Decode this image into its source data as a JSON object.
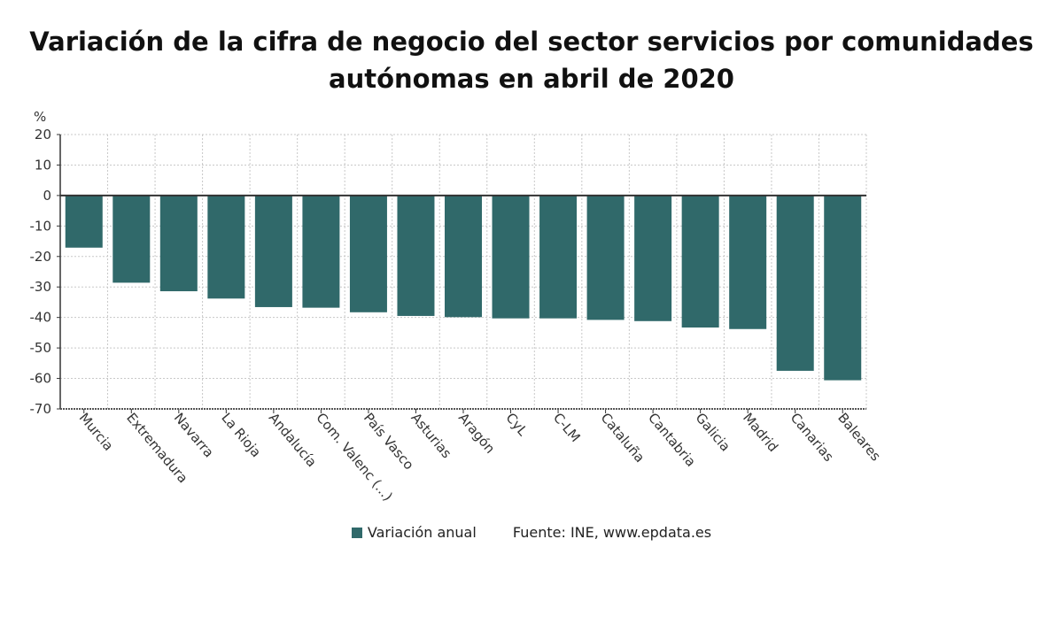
{
  "chart_data": {
    "type": "bar",
    "title": "Variación de la cifra de negocio del sector servicios por comunidades autónomas en abril de 2020",
    "ylabel": "%",
    "xlabel": "",
    "ylim": [
      -70,
      20
    ],
    "yticks": [
      20,
      10,
      0,
      -10,
      -20,
      -30,
      -40,
      -50,
      -60,
      -70
    ],
    "grid": true,
    "legend_position": "bottom",
    "categories": [
      "Murcia",
      "Extremadura",
      "Navarra",
      "La Rioja",
      "Andalucía",
      "Com. Valenc (...)",
      "País Vasco",
      "Asturias",
      "Aragón",
      "CyL",
      "C-LM",
      "Cataluña",
      "Cantabria",
      "Galicia",
      "Madrid",
      "Canarias",
      "Baleares"
    ],
    "series": [
      {
        "name": "Variación anual",
        "color": "#30696a",
        "values": [
          -17.1,
          -28.6,
          -31.4,
          -33.8,
          -36.6,
          -36.8,
          -38.3,
          -39.5,
          -39.9,
          -40.3,
          -40.3,
          -40.8,
          -41.2,
          -43.3,
          -43.8,
          -57.5,
          -60.6
        ]
      }
    ],
    "source": "Fuente: INE, www.epdata.es"
  }
}
